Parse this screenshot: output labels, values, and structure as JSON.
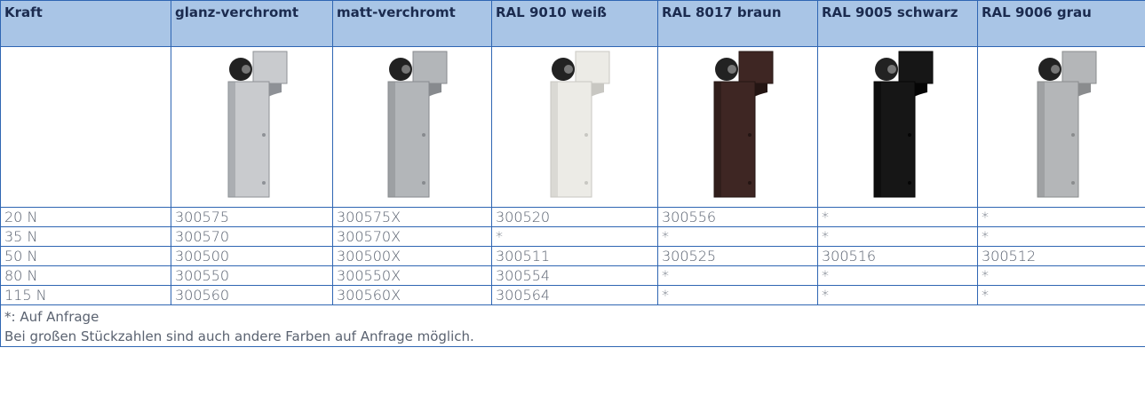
{
  "table": {
    "header": [
      "Kraft",
      "glanz-verchromt",
      "matt-verchromt",
      "RAL 9010 weiß",
      "RAL 8017 braun",
      "RAL 9005 schwarz",
      "RAL 9006 grau"
    ],
    "rows": [
      [
        "20 N",
        "300575",
        "300575X",
        "300520",
        "300556",
        "*",
        "*"
      ],
      [
        "35 N",
        "300570",
        "300570X",
        "*",
        "*",
        "*",
        "*"
      ],
      [
        "50 N",
        "300500",
        "300500X",
        "300511",
        "300525",
        "300516",
        "300512"
      ],
      [
        "80 N",
        "300550",
        "300550X",
        "300554",
        "*",
        "*",
        "*"
      ],
      [
        "115 N",
        "300560",
        "300560X",
        "300564",
        "*",
        "*",
        "*"
      ]
    ],
    "footnotes": [
      "*: Auf Anfrage",
      "Bei großen Stückzahlen sind auch andere Farben auf Anfrage möglich."
    ]
  }
}
